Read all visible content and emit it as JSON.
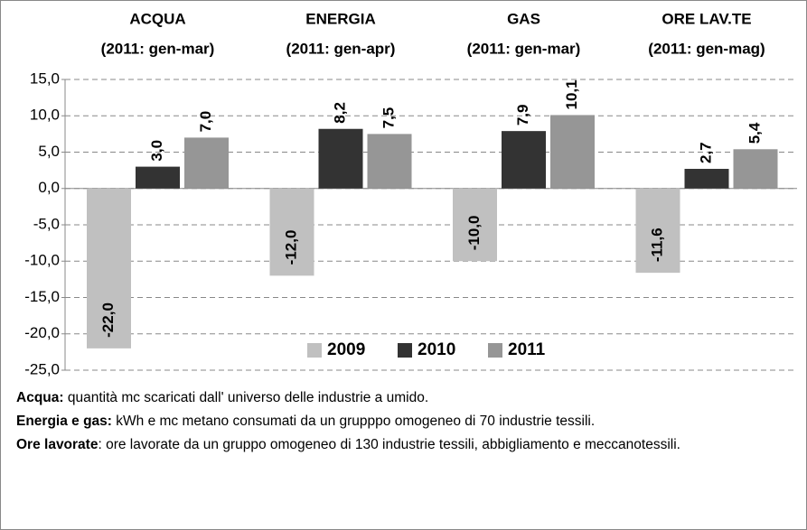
{
  "chart_data": {
    "type": "bar",
    "categories": [
      "ACQUA",
      "ENERGIA",
      "GAS",
      "ORE LAV.TE"
    ],
    "category_subtitles": [
      "(2011: gen-mar)",
      "(2011: gen-apr)",
      "(2011: gen-mar)",
      "(2011: gen-mag)"
    ],
    "series": [
      {
        "name": "2009",
        "color": "#c0c0c0",
        "values": [
          -22.0,
          -12.0,
          -10.0,
          -11.6
        ],
        "value_labels": [
          "-22,0",
          "-12,0",
          "-10,0",
          "-11,6"
        ]
      },
      {
        "name": "2010",
        "color": "#333333",
        "values": [
          3.0,
          8.2,
          7.9,
          2.7
        ],
        "value_labels": [
          "3,0",
          "8,2",
          "7,9",
          "2,7"
        ]
      },
      {
        "name": "2011",
        "color": "#969696",
        "values": [
          7.0,
          7.5,
          10.1,
          5.4
        ],
        "value_labels": [
          "7,0",
          "7,5",
          "10,1",
          "5,4"
        ]
      }
    ],
    "ylim": [
      -25,
      15
    ],
    "yticks": [
      {
        "value": -25,
        "label": "-25,0"
      },
      {
        "value": -20,
        "label": "-20,0"
      },
      {
        "value": -15,
        "label": "-15,0"
      },
      {
        "value": -10,
        "label": "-10,0"
      },
      {
        "value": -5,
        "label": "-5,0"
      },
      {
        "value": 0,
        "label": "0,0"
      },
      {
        "value": 5,
        "label": "5,0"
      },
      {
        "value": 10,
        "label": "10,0"
      },
      {
        "value": 15,
        "label": "15,0"
      }
    ],
    "grid": true,
    "legend": "bottom-center"
  },
  "notes": [
    {
      "label": "Acqua:",
      "text": " quantità mc scaricati dall' universo delle industrie a umido."
    },
    {
      "label": "Energia e gas:",
      "text": " kWh e mc metano consumati da un grupppo omogeneo di 70 industrie tessili."
    },
    {
      "label": "Ore lavorate",
      "text": ": ore lavorate da un gruppo omogeneo di 130 industrie tessili, abbigliamento e meccanotessili."
    }
  ]
}
